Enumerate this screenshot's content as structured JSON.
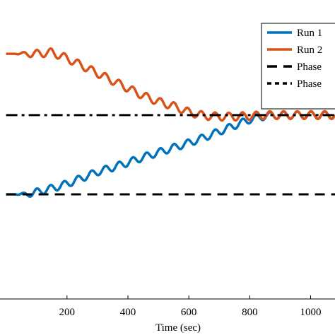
{
  "chart_data": {
    "type": "line",
    "xlabel": "Time (sec)",
    "ylabel": "",
    "title": "",
    "xlim": [
      -20,
      1080
    ],
    "ylim": [
      0,
      1
    ],
    "xticks": [
      200,
      400,
      600,
      800,
      1000
    ],
    "xtick_labels": [
      "200",
      "400",
      "600",
      "800",
      "1000"
    ],
    "grid": false,
    "legend_position": "top-right",
    "series": [
      {
        "name": "Run 1",
        "color": "#0072BD",
        "style": "solid",
        "x": [
          0,
          40,
          70,
          100,
          150,
          200,
          250,
          300,
          350,
          400,
          450,
          500,
          550,
          600,
          650,
          700,
          750,
          800,
          850,
          900,
          950,
          1000,
          1050,
          1080
        ],
        "y": [
          0.35,
          0.35,
          0.35,
          0.357,
          0.37,
          0.385,
          0.405,
          0.425,
          0.44,
          0.456,
          0.474,
          0.49,
          0.506,
          0.522,
          0.54,
          0.56,
          0.58,
          0.6,
          0.612,
          0.615,
          0.615,
          0.615,
          0.615,
          0.615
        ],
        "ripple_amplitude": 0.012,
        "ripple_period": 45
      },
      {
        "name": "Run 2",
        "color": "#D95319",
        "style": "solid",
        "x": [
          0,
          100,
          150,
          200,
          250,
          300,
          350,
          400,
          450,
          500,
          550,
          600,
          650,
          700,
          750,
          800,
          850,
          900,
          950,
          1000,
          1050,
          1080
        ],
        "y": [
          0.82,
          0.82,
          0.825,
          0.805,
          0.78,
          0.755,
          0.73,
          0.705,
          0.68,
          0.66,
          0.645,
          0.625,
          0.613,
          0.61,
          0.61,
          0.612,
          0.615,
          0.615,
          0.615,
          0.615,
          0.615,
          0.615
        ],
        "ripple_amplitude": 0.013,
        "ripple_period": 45
      },
      {
        "name": "Phase",
        "color": "#000000",
        "style": "dashed",
        "x": [
          0,
          1080
        ],
        "y": [
          0.35,
          0.35
        ]
      },
      {
        "name": "Phase",
        "color": "#000000",
        "style": "dashdot",
        "x": [
          0,
          1080
        ],
        "y": [
          0.615,
          0.615
        ]
      }
    ],
    "legend": [
      {
        "label": "Run 1",
        "color": "#0072BD",
        "style": "solid"
      },
      {
        "label": "Run 2",
        "color": "#D95319",
        "style": "solid"
      },
      {
        "label": "Phase",
        "color": "#000000",
        "style": "dashed"
      },
      {
        "label": "Phase",
        "color": "#000000",
        "style": "dotted"
      }
    ]
  }
}
